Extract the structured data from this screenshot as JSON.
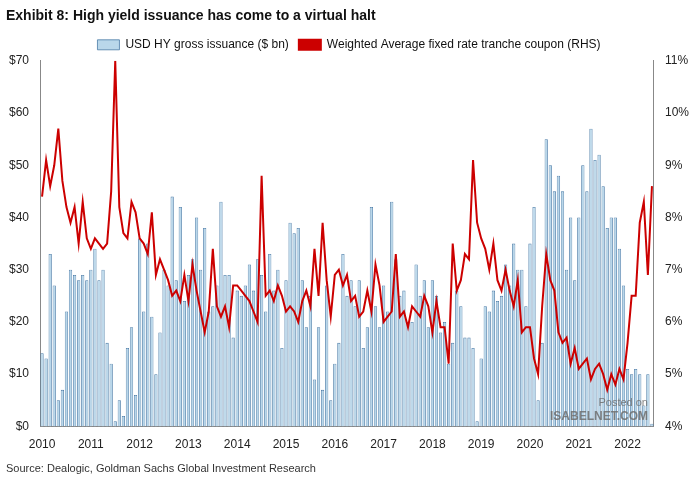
{
  "chart_data": {
    "type": "bar",
    "title": "Exhibit 8: High yield issuance has come to a virtual halt",
    "source": "Source: Dealogic, Goldman Sachs Global Investment Research",
    "annotations": [
      "Posted on",
      "ISABELNET.COM"
    ],
    "legend": "top",
    "grid": false,
    "categories": [
      "2010",
      null,
      null,
      null,
      null,
      null,
      null,
      null,
      null,
      null,
      null,
      null,
      "2011",
      null,
      null,
      null,
      null,
      null,
      null,
      null,
      null,
      null,
      null,
      null,
      "2012",
      null,
      null,
      null,
      null,
      null,
      null,
      null,
      null,
      null,
      null,
      null,
      "2013",
      null,
      null,
      null,
      null,
      null,
      null,
      null,
      null,
      null,
      null,
      null,
      "2014",
      null,
      null,
      null,
      null,
      null,
      null,
      null,
      null,
      null,
      null,
      null,
      "2015",
      null,
      null,
      null,
      null,
      null,
      null,
      null,
      null,
      null,
      null,
      null,
      "2016",
      null,
      null,
      null,
      null,
      null,
      null,
      null,
      null,
      null,
      null,
      null,
      "2017",
      null,
      null,
      null,
      null,
      null,
      null,
      null,
      null,
      null,
      null,
      null,
      "2018",
      null,
      null,
      null,
      null,
      null,
      null,
      null,
      null,
      null,
      null,
      null,
      "2019",
      null,
      null,
      null,
      null,
      null,
      null,
      null,
      null,
      null,
      null,
      null,
      "2020",
      null,
      null,
      null,
      null,
      null,
      null,
      null,
      null,
      null,
      null,
      null,
      "2021",
      null,
      null,
      null,
      null,
      null,
      null,
      null,
      null,
      null,
      null,
      null,
      "2022",
      null,
      null,
      null,
      null,
      null,
      null
    ],
    "ylim": [
      0,
      70
    ],
    "yticks": [
      {
        "value": 0,
        "label": "$0"
      },
      {
        "value": 10,
        "label": "$10"
      },
      {
        "value": 20,
        "label": "$20"
      },
      {
        "value": 30,
        "label": "$30"
      },
      {
        "value": 40,
        "label": "$40"
      },
      {
        "value": 50,
        "label": "$50"
      },
      {
        "value": 60,
        "label": "$60"
      },
      {
        "value": 70,
        "label": "$70"
      }
    ],
    "y2lim": [
      4,
      11
    ],
    "y2ticks": [
      {
        "value": 4,
        "label": "4%"
      },
      {
        "value": 5,
        "label": "5%"
      },
      {
        "value": 6,
        "label": "6%"
      },
      {
        "value": 7,
        "label": "7%"
      },
      {
        "value": 8,
        "label": "8%"
      },
      {
        "value": 9,
        "label": "9%"
      },
      {
        "value": 10,
        "label": "10%"
      },
      {
        "value": 11,
        "label": "11%"
      }
    ],
    "series": [
      {
        "name": "USD HY gross issuance ($ bn)",
        "type": "bar",
        "color": "#b9d7ea",
        "values": [
          14,
          13,
          33,
          27,
          5,
          7,
          22,
          30,
          29,
          28,
          29,
          28,
          30,
          34,
          28,
          30,
          16,
          12,
          1,
          5,
          2,
          15,
          19,
          6,
          36,
          22,
          35,
          21,
          10,
          18,
          30,
          27,
          44,
          28,
          42,
          24,
          29,
          32,
          40,
          30,
          38,
          22,
          23,
          27,
          43,
          29,
          29,
          17,
          26,
          25,
          27,
          31,
          26,
          32,
          29,
          22,
          33,
          26,
          30,
          15,
          28,
          39,
          37,
          38,
          28,
          19,
          25,
          9,
          19,
          7,
          27,
          5,
          12,
          16,
          33,
          25,
          28,
          23,
          28,
          15,
          19,
          42,
          23,
          19,
          27,
          22,
          43,
          32,
          25,
          26,
          20,
          20,
          31,
          25,
          28,
          19,
          28,
          25,
          18,
          20,
          12,
          16,
          26,
          23,
          17,
          17,
          15,
          1,
          13,
          23,
          22,
          26,
          24,
          25,
          31,
          27,
          35,
          30,
          30,
          23,
          35,
          42,
          5,
          16,
          55,
          50,
          45,
          48,
          45,
          30,
          40,
          28,
          40,
          50,
          45,
          57,
          51,
          52,
          46,
          38,
          40,
          40,
          34,
          27,
          11,
          10,
          11,
          10,
          4,
          10,
          0.5
        ]
      },
      {
        "name": "Weighted Average fixed rate tranche coupon (RHS)",
        "type": "line",
        "axis": "y2",
        "color": "#cc0000",
        "values": [
          8.4,
          9.1,
          8.6,
          9.0,
          9.7,
          8.7,
          8.2,
          7.9,
          8.2,
          7.5,
          8.3,
          7.6,
          7.4,
          7.6,
          7.5,
          7.4,
          7.5,
          8.5,
          11.0,
          8.2,
          7.7,
          7.6,
          8.3,
          8.1,
          7.6,
          7.5,
          7.3,
          8.1,
          6.9,
          7.2,
          7.0,
          6.8,
          6.5,
          6.6,
          6.4,
          6.9,
          6.4,
          7.1,
          6.6,
          6.2,
          5.8,
          6.2,
          7.4,
          6.3,
          6.1,
          6.3,
          5.9,
          6.7,
          6.7,
          6.6,
          6.5,
          6.4,
          6.2,
          6.0,
          8.8,
          6.5,
          6.6,
          6.4,
          6.7,
          6.5,
          6.2,
          6.3,
          6.2,
          6.0,
          6.4,
          6.6,
          6.3,
          7.4,
          6.5,
          7.9,
          6.8,
          6.1,
          6.9,
          7.0,
          6.7,
          6.9,
          6.4,
          6.5,
          6.1,
          6.2,
          6.6,
          6.2,
          7.1,
          6.7,
          6.0,
          6.1,
          6.2,
          7.3,
          6.1,
          6.2,
          5.9,
          6.3,
          6.2,
          6.1,
          6.5,
          6.3,
          5.8,
          6.4,
          5.9,
          5.9,
          5.2,
          7.5,
          6.6,
          6.8,
          7.3,
          7.2,
          9.1,
          7.9,
          7.6,
          7.4,
          7.0,
          7.5,
          6.8,
          6.6,
          7.0,
          6.6,
          6.3,
          6.8,
          5.8,
          5.9,
          5.9,
          5.3,
          5.0,
          6.3,
          7.3,
          6.8,
          6.6,
          5.8,
          5.6,
          5.7,
          5.2,
          5.5,
          5.1,
          5.2,
          5.3,
          4.9,
          5.1,
          5.2,
          5.0,
          4.7,
          5.0,
          4.8,
          5.1,
          4.9,
          5.6,
          6.5,
          6.5,
          7.9,
          8.3,
          6.9,
          8.6
        ]
      }
    ]
  }
}
